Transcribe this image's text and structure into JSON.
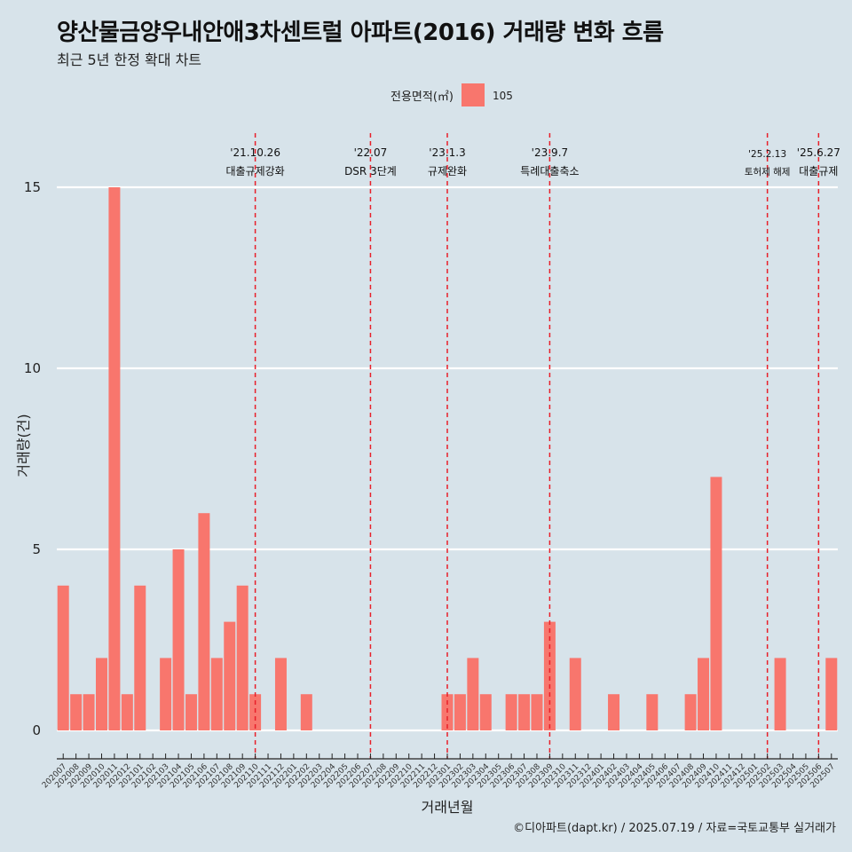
{
  "title": "양산물금양우내안애3차센트럴 아파트(2016) 거래량 변화 흐름",
  "subtitle": "최근 5년 한정 확대 차트",
  "caption": "©디아파트(dapt.kr) / 2025.07.19 / 자료=국토교통부 실거래가",
  "colors": {
    "background": "#d7e3ea",
    "bar": "#f8766d",
    "event_line": "#e8202a",
    "grid": "#ffffff"
  },
  "chart_data": {
    "type": "bar",
    "xlabel": "거래년월",
    "ylabel": "거래량(건)",
    "ylim": [
      0,
      15
    ],
    "yticks": [
      0,
      5,
      10,
      15
    ],
    "grid": true,
    "legend": {
      "title": "전용면적(㎡)",
      "placement": "top",
      "items": [
        "105"
      ]
    },
    "categories": [
      "202007",
      "202008",
      "202009",
      "202010",
      "202011",
      "202012",
      "202101",
      "202102",
      "202103",
      "202104",
      "202105",
      "202106",
      "202107",
      "202108",
      "202109",
      "202110",
      "202111",
      "202112",
      "202201",
      "202202",
      "202203",
      "202204",
      "202205",
      "202206",
      "202207",
      "202208",
      "202209",
      "202210",
      "202211",
      "202212",
      "202301",
      "202302",
      "202303",
      "202304",
      "202305",
      "202306",
      "202307",
      "202308",
      "202309",
      "202310",
      "202311",
      "202312",
      "202401",
      "202402",
      "202403",
      "202404",
      "202405",
      "202406",
      "202407",
      "202408",
      "202409",
      "202410",
      "202411",
      "202412",
      "202501",
      "202502",
      "202503",
      "202504",
      "202505",
      "202506",
      "202507"
    ],
    "series": [
      {
        "name": "105",
        "values": [
          4,
          1,
          1,
          2,
          15,
          1,
          4,
          0,
          2,
          5,
          1,
          6,
          2,
          3,
          4,
          1,
          0,
          2,
          0,
          1,
          0,
          0,
          0,
          0,
          0,
          0,
          0,
          0,
          0,
          0,
          1,
          1,
          2,
          1,
          0,
          1,
          1,
          1,
          3,
          0,
          2,
          0,
          0,
          1,
          0,
          0,
          1,
          0,
          0,
          1,
          2,
          7,
          0,
          0,
          0,
          0,
          2,
          0,
          0,
          0,
          2
        ]
      }
    ],
    "events": [
      {
        "date": "'21.10.26",
        "label": "대출규제강화",
        "x": "202110"
      },
      {
        "date": "'22.07",
        "label": "DSR 3단계",
        "x": "202207"
      },
      {
        "date": "'23.1.3",
        "label": "규제완화",
        "x": "202301"
      },
      {
        "date": "'23.9.7",
        "label": "특례대출축소",
        "x": "202309"
      },
      {
        "date": "'25.2.13",
        "label": "토허제 해제",
        "x": "202502"
      },
      {
        "date": "'25.6.27",
        "label": "대출규제",
        "x": "202506"
      }
    ]
  }
}
